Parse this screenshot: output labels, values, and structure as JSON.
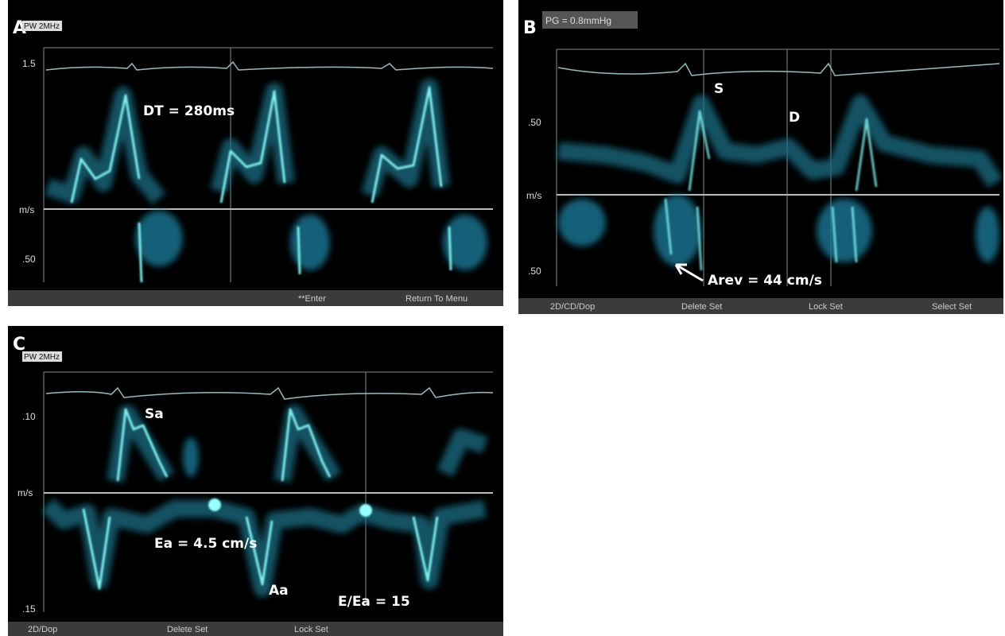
{
  "panels": [
    {
      "label": "A",
      "mode": "PW 2MHz",
      "axis": {
        "top": "1.5",
        "unit": "m/s",
        "bottom": ".50"
      },
      "annotations": [
        "DT = 280ms"
      ],
      "menu": [
        "**Enter",
        "Return To Menu"
      ]
    },
    {
      "label": "B",
      "header": "PG = 0.8mmHg",
      "axis": {
        "top": ".50",
        "unit": "m/s",
        "bottom": ".50"
      },
      "annotations": [
        "S",
        "D",
        "Arev = 44 cm/s"
      ],
      "menu": [
        "2D/CD/Dop",
        "Delete Set",
        "Lock Set",
        "Select Set"
      ]
    },
    {
      "label": "C",
      "mode": "PW 2MHz",
      "axis": {
        "top": ".10",
        "unit": "m/s",
        "bottom": ".15"
      },
      "annotations": [
        "Sa",
        "Ea = 4.5 cm/s",
        "Aa",
        "E/Ea = 15"
      ],
      "menu": [
        "2D/Dop",
        "Delete Set",
        "Lock Set"
      ]
    }
  ]
}
